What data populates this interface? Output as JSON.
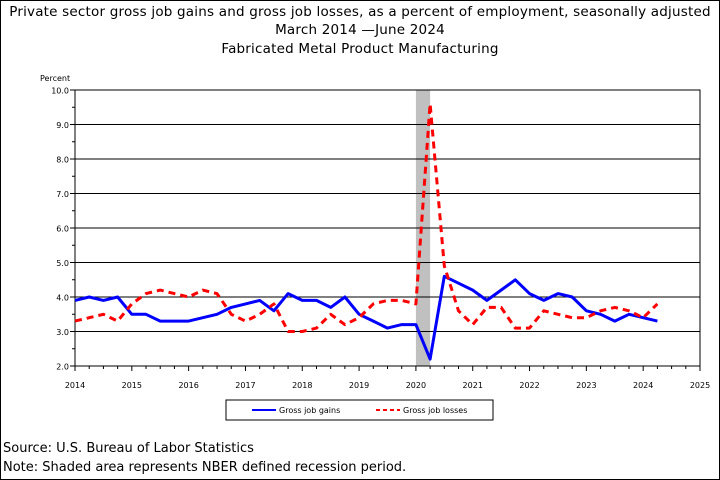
{
  "title_line1": "Private sector gross job gains and gross job losses, as a percent of employment, seasonally adjusted",
  "title_line2": "March 2014 —June 2024",
  "title_line3": "Fabricated Metal Product Manufacturing",
  "footer": {
    "source": "Source: U.S. Bureau of Labor Statistics",
    "note": "Note: Shaded area represents NBER defined recession period."
  },
  "colors": {
    "gains": "#0000ff",
    "losses": "#ff0000",
    "recession": "#c0c0c0"
  },
  "chart_data": {
    "type": "line",
    "title": "Private sector gross job gains and gross job losses, as a percent of employment, seasonally adjusted",
    "ylabel": "Percent",
    "xlabel": "",
    "ylim": [
      2.0,
      10.0
    ],
    "xlim": [
      2014,
      2025
    ],
    "yticks": [
      "2.0",
      "3.0",
      "4.0",
      "5.0",
      "6.0",
      "7.0",
      "8.0",
      "9.0",
      "10.0"
    ],
    "xticks": [
      "2014",
      "2015",
      "2016",
      "2017",
      "2018",
      "2019",
      "2020",
      "2021",
      "2022",
      "2023",
      "2024",
      "2025"
    ],
    "grid": "horizontal",
    "legend_position": "bottom",
    "recession": [
      2020.0,
      2020.25
    ],
    "x": [
      2014.0,
      2014.25,
      2014.5,
      2014.75,
      2015.0,
      2015.25,
      2015.5,
      2015.75,
      2016.0,
      2016.25,
      2016.5,
      2016.75,
      2017.0,
      2017.25,
      2017.5,
      2017.75,
      2018.0,
      2018.25,
      2018.5,
      2018.75,
      2019.0,
      2019.25,
      2019.5,
      2019.75,
      2020.0,
      2020.25,
      2020.5,
      2020.75,
      2021.0,
      2021.25,
      2021.5,
      2021.75,
      2022.0,
      2022.25,
      2022.5,
      2022.75,
      2023.0,
      2023.25,
      2023.5,
      2023.75,
      2024.0,
      2024.25
    ],
    "series": [
      {
        "name": "Gross job gains",
        "style": "solid",
        "values": [
          3.9,
          4.0,
          3.9,
          4.0,
          3.5,
          3.5,
          3.3,
          3.3,
          3.3,
          3.4,
          3.5,
          3.7,
          3.8,
          3.9,
          3.6,
          4.1,
          3.9,
          3.9,
          3.7,
          4.0,
          3.5,
          3.3,
          3.1,
          3.2,
          3.2,
          2.2,
          4.6,
          4.4,
          4.2,
          3.9,
          4.2,
          4.5,
          4.1,
          3.9,
          4.1,
          4.0,
          3.6,
          3.5,
          3.3,
          3.5,
          3.4,
          3.3
        ]
      },
      {
        "name": "Gross job losses",
        "style": "dashed",
        "values": [
          3.3,
          3.4,
          3.5,
          3.3,
          3.8,
          4.1,
          4.2,
          4.1,
          4.0,
          4.2,
          4.1,
          3.5,
          3.3,
          3.5,
          3.8,
          3.0,
          3.0,
          3.1,
          3.5,
          3.2,
          3.4,
          3.8,
          3.9,
          3.9,
          3.8,
          9.6,
          4.9,
          3.6,
          3.2,
          3.7,
          3.7,
          3.1,
          3.1,
          3.6,
          3.5,
          3.4,
          3.4,
          3.6,
          3.7,
          3.6,
          3.4,
          3.8
        ]
      }
    ]
  }
}
